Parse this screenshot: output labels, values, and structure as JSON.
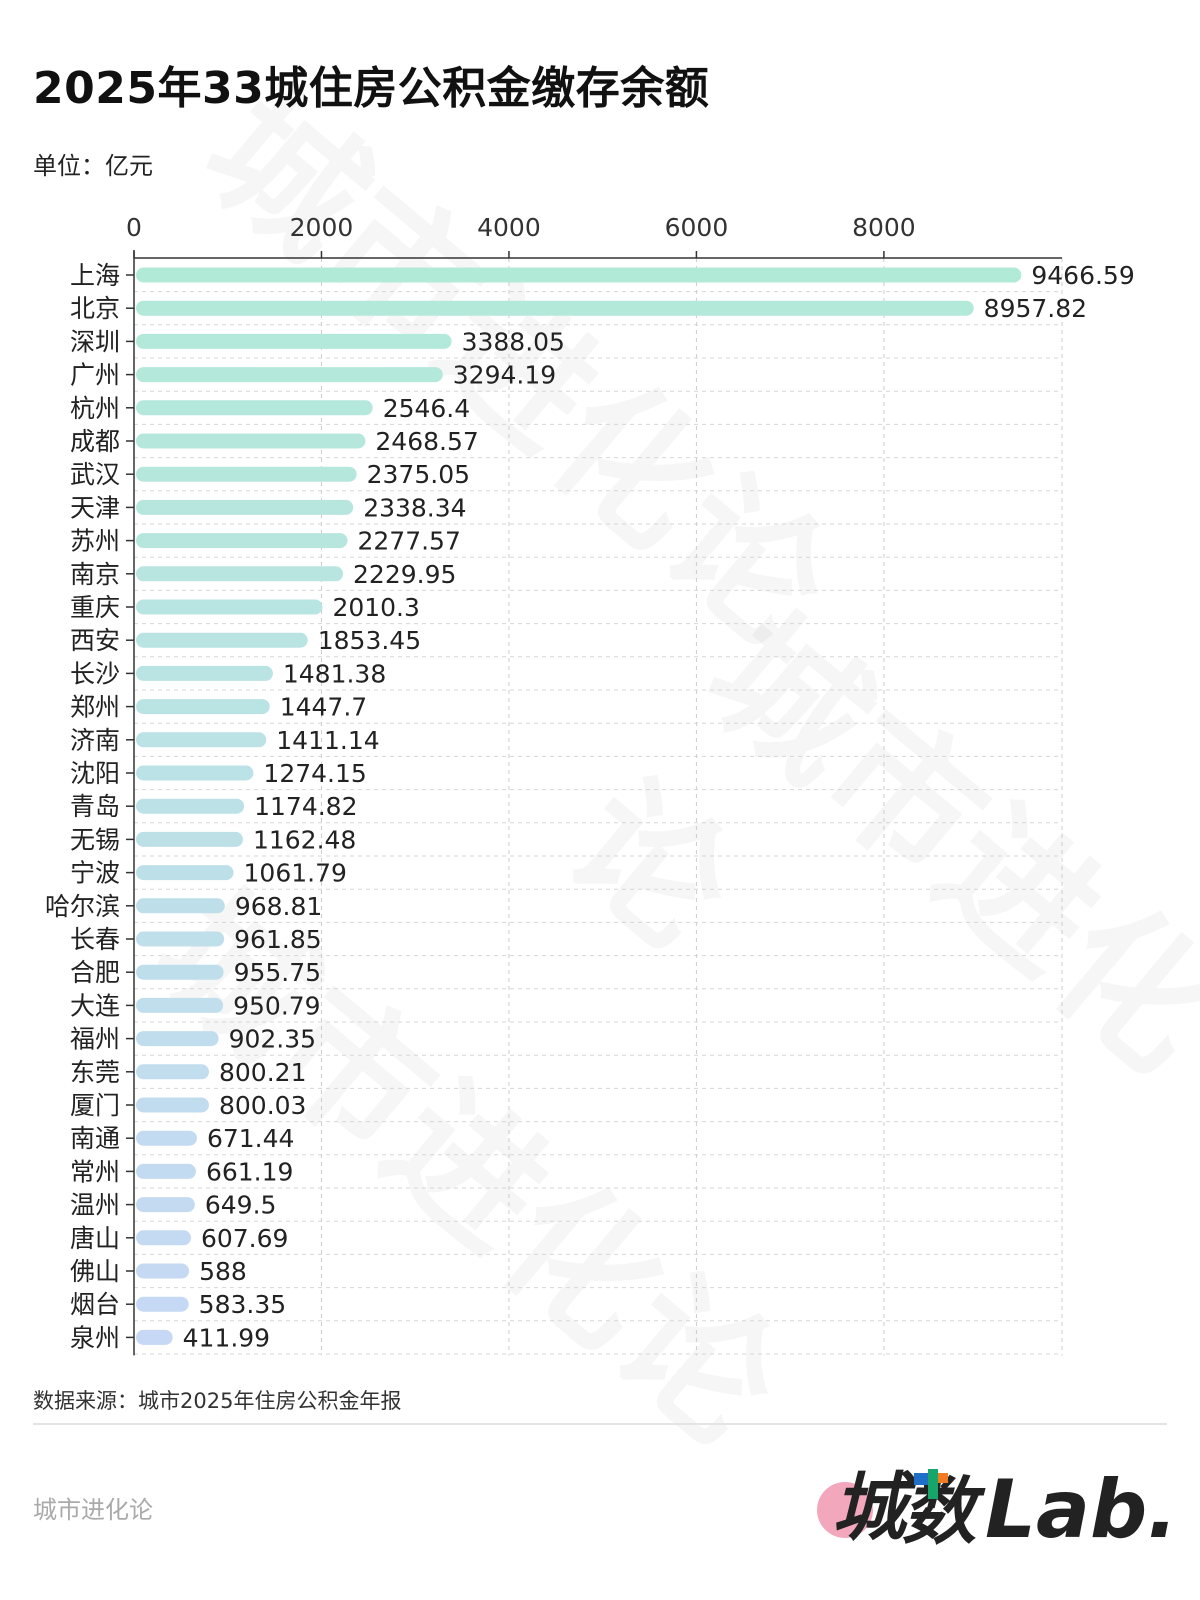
{
  "title": "2025年33城住房公积金缴存余额",
  "unit_label": "单位：亿元",
  "source": "数据来源：城市2025年住房公积金年报",
  "brand": "城市进化论",
  "logo_text": "城数Lab.",
  "colors": {
    "bar_start": "#b2ead8",
    "bar_end": "#c6d8f5",
    "text": "#222222"
  },
  "chart_data": {
    "type": "bar",
    "orientation": "horizontal",
    "title": "2025年33城住房公积金缴存余额",
    "xlabel": "",
    "ylabel": "",
    "xlim": [
      0,
      9900
    ],
    "xticks": [
      0,
      2000,
      4000,
      6000,
      8000
    ],
    "grid": true,
    "categories": [
      "上海",
      "北京",
      "深圳",
      "广州",
      "杭州",
      "成都",
      "武汉",
      "天津",
      "苏州",
      "南京",
      "重庆",
      "西安",
      "长沙",
      "郑州",
      "济南",
      "沈阳",
      "青岛",
      "无锡",
      "宁波",
      "哈尔滨",
      "长春",
      "合肥",
      "大连",
      "福州",
      "东莞",
      "厦门",
      "南通",
      "常州",
      "温州",
      "唐山",
      "佛山",
      "烟台",
      "泉州"
    ],
    "values": [
      9466.59,
      8957.82,
      3388.05,
      3294.19,
      2546.4,
      2468.57,
      2375.05,
      2338.34,
      2277.57,
      2229.95,
      2010.3,
      1853.45,
      1481.38,
      1447.7,
      1411.14,
      1274.15,
      1174.82,
      1162.48,
      1061.79,
      968.81,
      961.85,
      955.75,
      950.79,
      902.35,
      800.21,
      800.03,
      671.44,
      661.19,
      649.5,
      607.69,
      588,
      583.35,
      411.99
    ],
    "labels": [
      "9466.59",
      "8957.82",
      "3388.05",
      "3294.19",
      "2546.4",
      "2468.57",
      "2375.05",
      "2338.34",
      "2277.57",
      "2229.95",
      "2010.3",
      "1853.45",
      "1481.38",
      "1447.7",
      "1411.14",
      "1274.15",
      "1174.82",
      "1162.48",
      "1061.79",
      "968.81",
      "961.85",
      "955.75",
      "950.79",
      "902.35",
      "800.21",
      "800.03",
      "671.44",
      "661.19",
      "649.5",
      "607.69",
      "588",
      "583.35",
      "411.99"
    ]
  }
}
